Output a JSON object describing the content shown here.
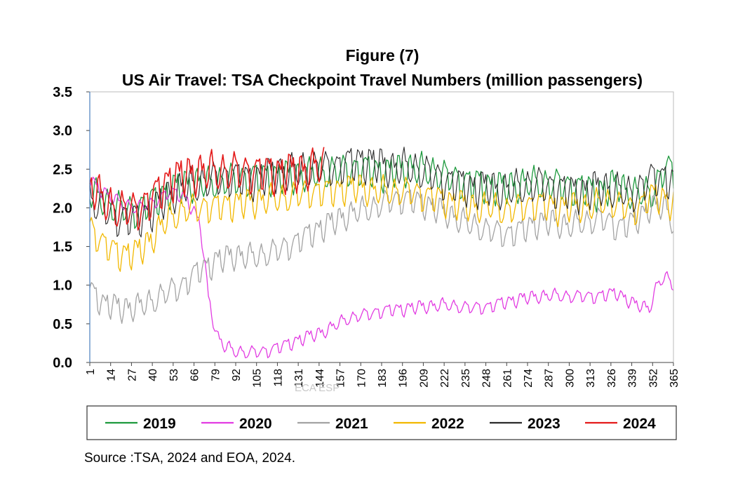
{
  "figure_label": "Figure (7)",
  "source": "Source :TSA, 2024 and EOA, 2024.",
  "watermark": "ECA ESP",
  "chart_data": {
    "type": "line",
    "title": "US Air Travel: TSA Checkpoint Travel Numbers (million passengers)",
    "xlabel": "",
    "ylabel": "",
    "ylim": [
      0,
      3.5
    ],
    "xlim": [
      1,
      365
    ],
    "yticks": [
      "0.0",
      "0.5",
      "1.0",
      "1.5",
      "2.0",
      "2.5",
      "3.0",
      "3.5"
    ],
    "xticks": [
      "1",
      "14",
      "27",
      "40",
      "53",
      "66",
      "79",
      "92",
      "105",
      "118",
      "131",
      "144",
      "157",
      "170",
      "183",
      "196",
      "209",
      "222",
      "235",
      "248",
      "261",
      "274",
      "287",
      "300",
      "313",
      "326",
      "339",
      "352",
      "365"
    ],
    "legend_position": "bottom",
    "grid": false,
    "series": [
      {
        "name": "2019",
        "color": "#1e9a3e",
        "width": 1.3,
        "x": [
          1,
          15,
          30,
          45,
          60,
          75,
          90,
          110,
          130,
          150,
          170,
          185,
          200,
          215,
          230,
          245,
          260,
          275,
          290,
          305,
          320,
          330,
          340,
          352,
          360,
          365
        ],
        "y": [
          2.2,
          2.0,
          1.95,
          2.15,
          2.3,
          2.3,
          2.35,
          2.4,
          2.4,
          2.45,
          2.5,
          2.45,
          2.5,
          2.45,
          2.35,
          2.3,
          2.25,
          2.3,
          2.3,
          2.25,
          2.2,
          2.3,
          2.15,
          2.2,
          2.5,
          2.45
        ],
        "amp": 0.2
      },
      {
        "name": "2020",
        "color": "#e23ce2",
        "width": 1.3,
        "x": [
          1,
          10,
          20,
          30,
          40,
          50,
          60,
          66,
          70,
          75,
          80,
          85,
          92,
          100,
          110,
          120,
          130,
          140,
          150,
          160,
          170,
          180,
          190,
          200,
          210,
          220,
          230,
          240,
          250,
          260,
          270,
          280,
          290,
          300,
          310,
          320,
          330,
          340,
          350,
          355,
          360,
          365
        ],
        "y": [
          2.35,
          2.2,
          2.05,
          2.0,
          2.05,
          2.2,
          2.15,
          1.95,
          1.75,
          0.85,
          0.35,
          0.2,
          0.14,
          0.12,
          0.14,
          0.2,
          0.28,
          0.35,
          0.42,
          0.55,
          0.6,
          0.65,
          0.68,
          0.7,
          0.72,
          0.74,
          0.72,
          0.7,
          0.72,
          0.78,
          0.82,
          0.85,
          0.86,
          0.85,
          0.85,
          0.86,
          0.9,
          0.75,
          0.7,
          1.0,
          1.1,
          1.0
        ],
        "amp": 0.08
      },
      {
        "name": "2021",
        "color": "#a3a3a3",
        "width": 1.3,
        "x": [
          1,
          10,
          20,
          30,
          40,
          50,
          60,
          70,
          80,
          90,
          100,
          110,
          120,
          130,
          140,
          150,
          160,
          170,
          180,
          190,
          200,
          210,
          220,
          230,
          240,
          250,
          260,
          270,
          280,
          290,
          300,
          310,
          320,
          330,
          340,
          350,
          360,
          365
        ],
        "y": [
          0.95,
          0.75,
          0.7,
          0.7,
          0.78,
          0.9,
          1.0,
          1.2,
          1.3,
          1.38,
          1.35,
          1.38,
          1.45,
          1.55,
          1.68,
          1.78,
          1.88,
          1.95,
          2.0,
          2.1,
          2.1,
          2.05,
          1.95,
          1.85,
          1.75,
          1.7,
          1.65,
          1.7,
          1.8,
          1.8,
          1.75,
          1.8,
          1.85,
          1.75,
          1.8,
          2.0,
          2.0,
          1.8
        ],
        "amp": 0.16
      },
      {
        "name": "2022",
        "color": "#f2b800",
        "width": 1.3,
        "x": [
          1,
          10,
          20,
          30,
          40,
          50,
          60,
          70,
          80,
          90,
          100,
          110,
          120,
          130,
          140,
          150,
          160,
          170,
          180,
          190,
          200,
          210,
          220,
          230,
          240,
          250,
          260,
          270,
          280,
          290,
          300,
          310,
          320,
          330,
          340,
          350,
          360,
          365
        ],
        "y": [
          1.75,
          1.5,
          1.4,
          1.4,
          1.6,
          1.85,
          1.95,
          2.0,
          2.0,
          2.05,
          2.05,
          2.1,
          2.1,
          2.15,
          2.2,
          2.2,
          2.25,
          2.25,
          2.2,
          2.2,
          2.2,
          2.15,
          2.1,
          2.05,
          2.0,
          2.0,
          1.95,
          2.0,
          2.05,
          2.0,
          2.0,
          2.0,
          2.05,
          2.05,
          1.95,
          2.15,
          2.1,
          2.05
        ],
        "amp": 0.18
      },
      {
        "name": "2023",
        "color": "#2b2b2b",
        "width": 1.1,
        "x": [
          1,
          10,
          20,
          30,
          40,
          50,
          60,
          70,
          80,
          90,
          100,
          110,
          120,
          130,
          140,
          150,
          160,
          170,
          180,
          190,
          200,
          210,
          220,
          230,
          240,
          250,
          260,
          270,
          280,
          290,
          300,
          310,
          320,
          330,
          340,
          350,
          360,
          365
        ],
        "y": [
          2.1,
          1.95,
          1.85,
          1.85,
          1.95,
          2.15,
          2.25,
          2.3,
          2.35,
          2.4,
          2.35,
          2.4,
          2.45,
          2.45,
          2.5,
          2.5,
          2.55,
          2.6,
          2.55,
          2.5,
          2.5,
          2.45,
          2.35,
          2.3,
          2.25,
          2.25,
          2.2,
          2.25,
          2.3,
          2.25,
          2.2,
          2.2,
          2.25,
          2.2,
          2.15,
          2.35,
          2.4,
          2.3
        ],
        "amp": 0.22
      },
      {
        "name": "2024",
        "color": "#e41a1a",
        "width": 1.6,
        "x": [
          1,
          10,
          20,
          30,
          40,
          50,
          60,
          70,
          80,
          90,
          100,
          110,
          120,
          130,
          140,
          147
        ],
        "y": [
          2.3,
          2.05,
          1.95,
          1.95,
          2.1,
          2.35,
          2.4,
          2.45,
          2.45,
          2.45,
          2.45,
          2.45,
          2.45,
          2.45,
          2.5,
          2.5
        ],
        "amp": 0.24
      }
    ]
  }
}
